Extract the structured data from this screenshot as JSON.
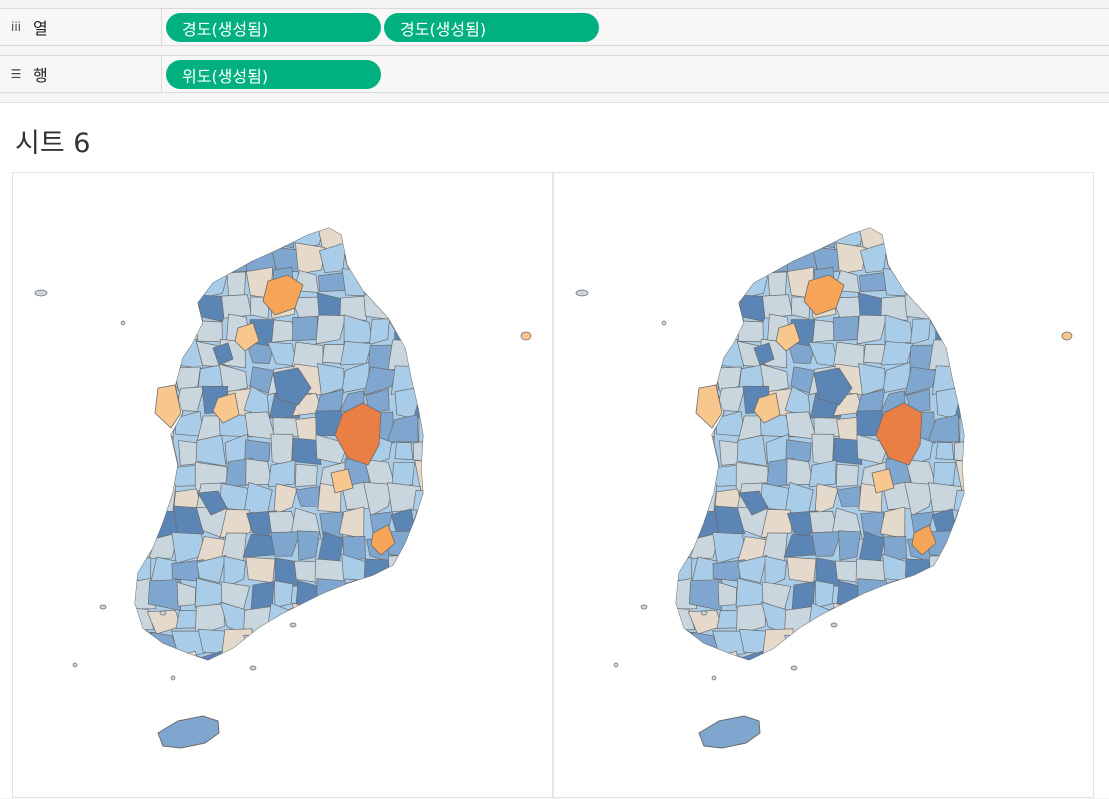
{
  "shelves": {
    "columns": {
      "label": "열",
      "icon": "columns-icon",
      "pills": [
        "경도(생성됨)",
        "경도(생성됨)"
      ]
    },
    "rows": {
      "label": "행",
      "icon": "rows-icon",
      "pills": [
        "위도(생성됨)"
      ]
    }
  },
  "sheet": {
    "title": "시트 6"
  },
  "colors": {
    "pill": "#00b17f",
    "dark_blue": "#5b85b5",
    "mid_blue": "#7fa6cf",
    "light_blue": "#a9cce8",
    "pale": "#c9d6de",
    "beige": "#e4d9cb",
    "light_orange": "#f7c78e",
    "orange": "#f6a457",
    "dark_orange": "#ea7f46"
  }
}
